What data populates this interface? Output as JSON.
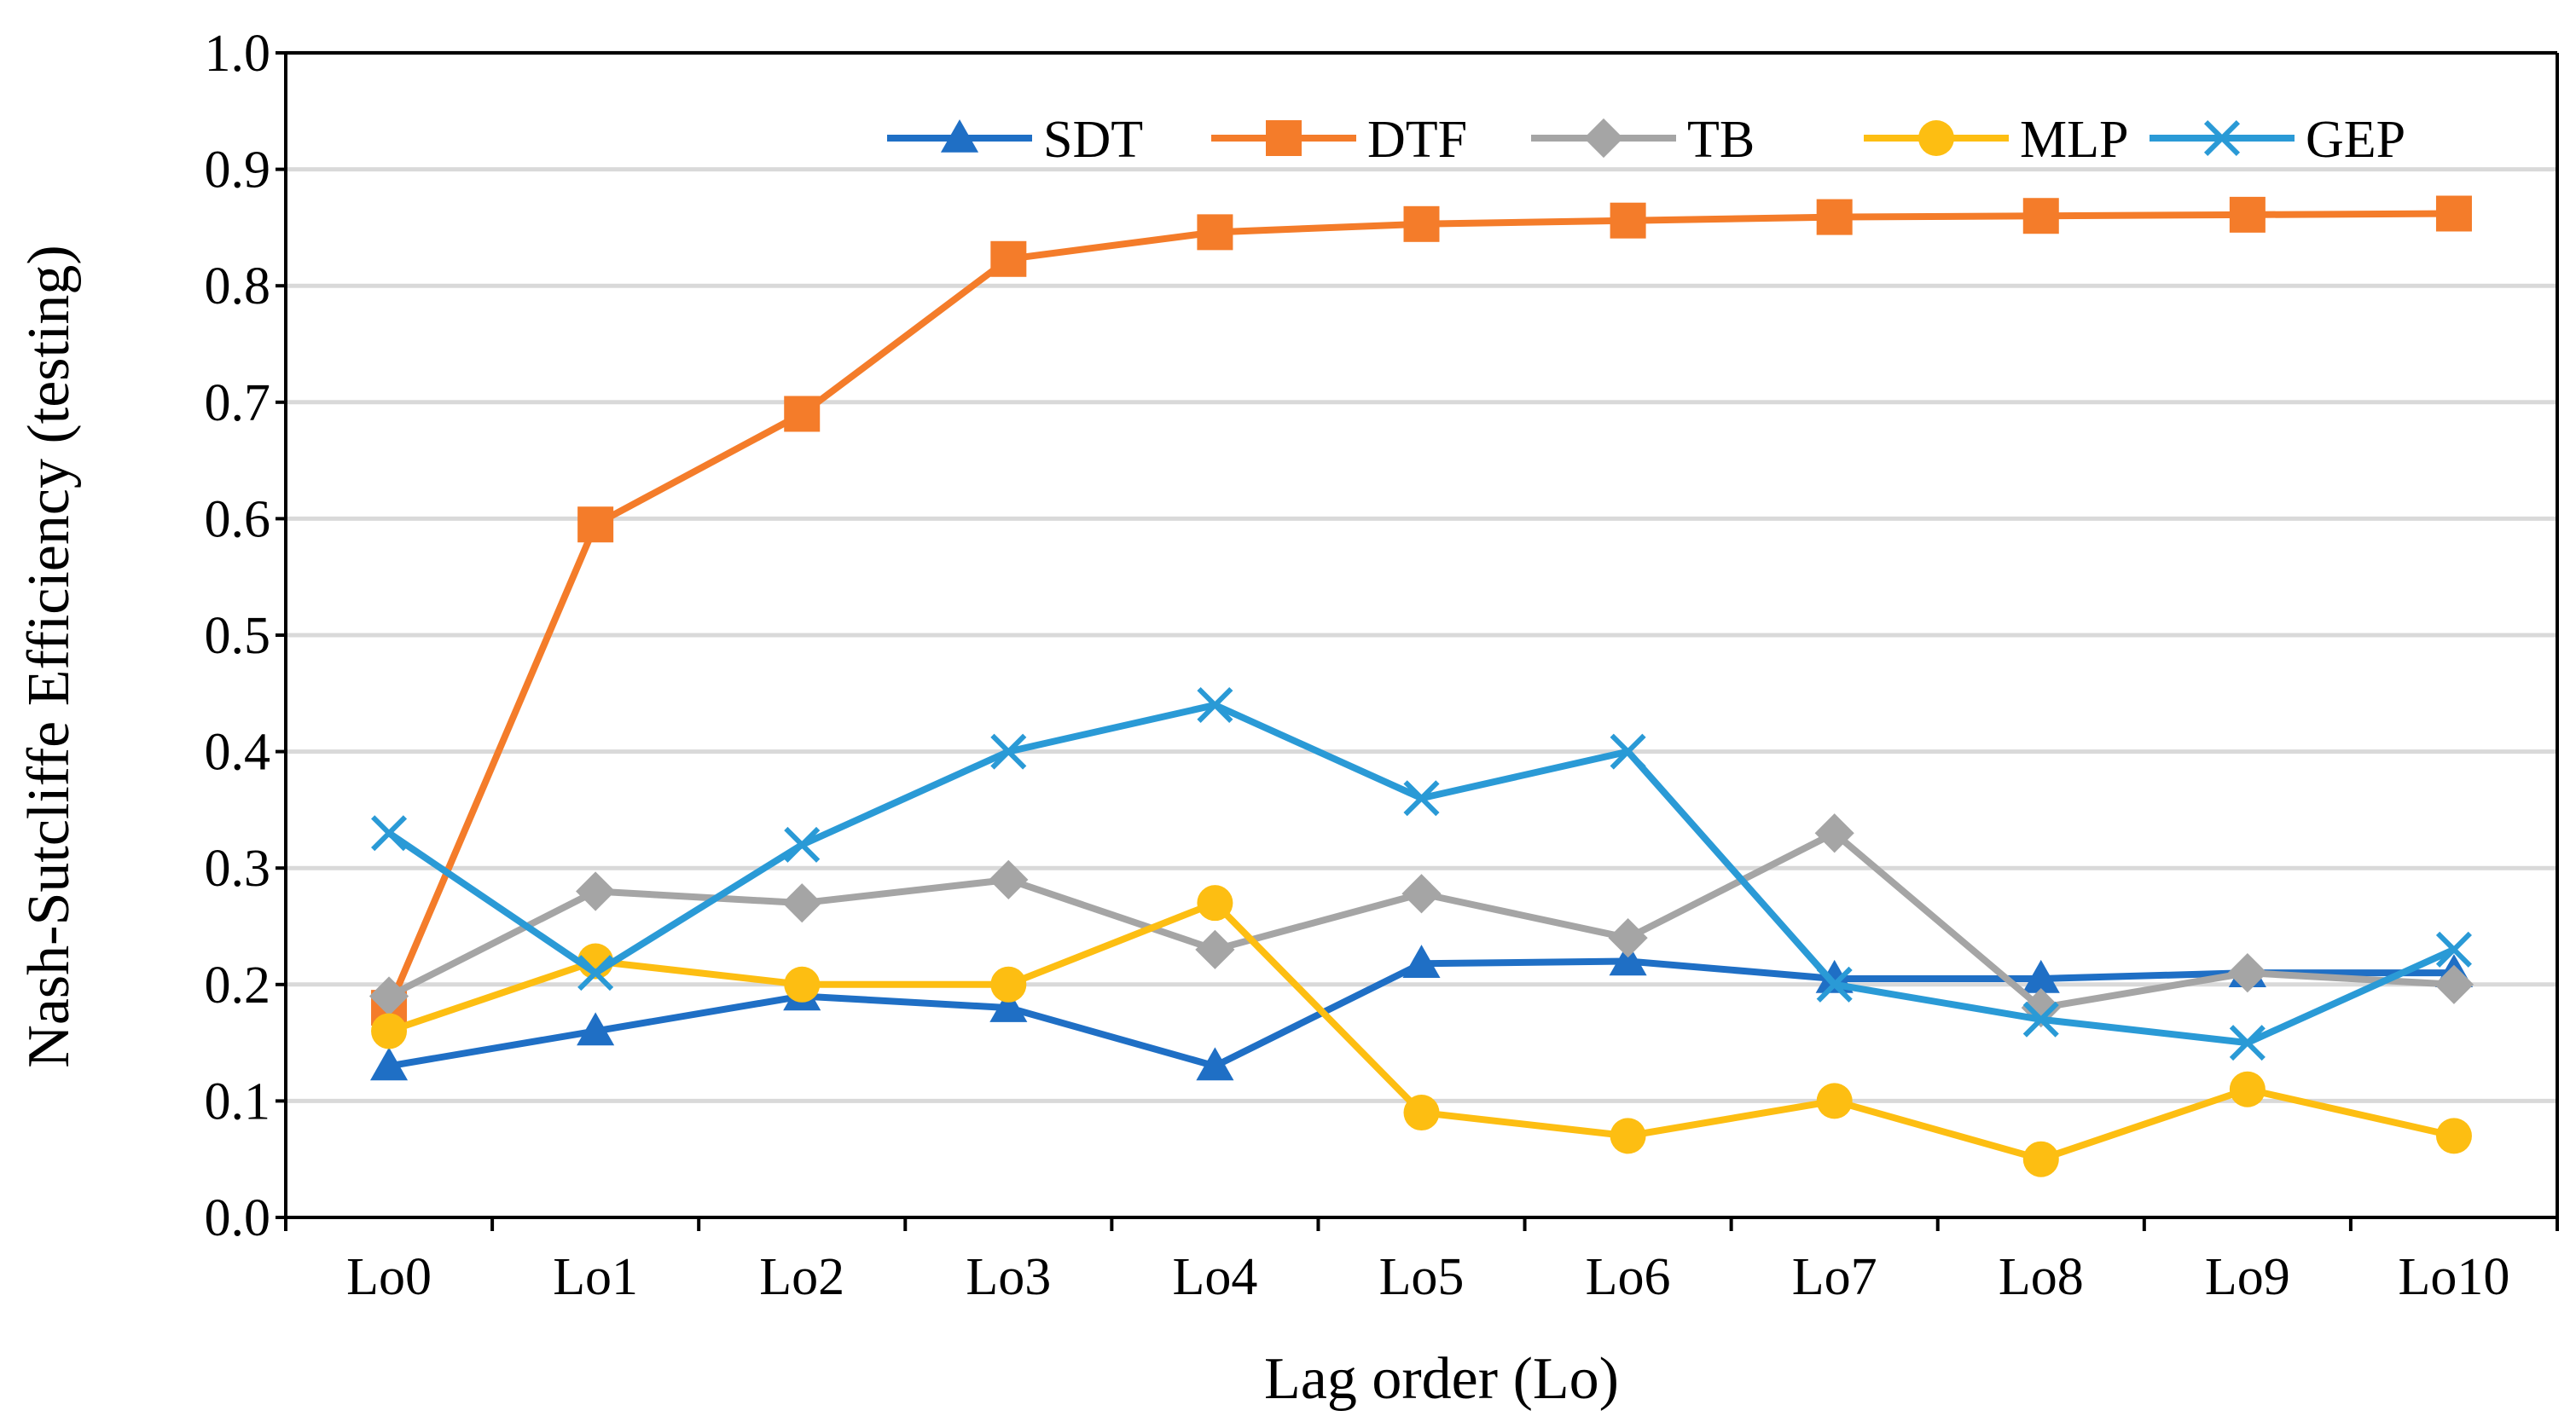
{
  "chart_data": {
    "type": "line",
    "title": "",
    "xlabel": "Lag order (Lo)",
    "ylabel": "Nash-Sutcliffe Efficiency (testing)",
    "categories": [
      "Lo0",
      "Lo1",
      "Lo2",
      "Lo3",
      "Lo4",
      "Lo5",
      "Lo6",
      "Lo7",
      "Lo8",
      "Lo9",
      "Lo10"
    ],
    "ylim": [
      0.0,
      1.0
    ],
    "yticks": [
      "0.0",
      "0.1",
      "0.2",
      "0.3",
      "0.4",
      "0.5",
      "0.6",
      "0.7",
      "0.8",
      "0.9",
      "1.0"
    ],
    "grid": true,
    "legend_position": "top-right",
    "series": [
      {
        "name": "SDT",
        "color": "#1f6fc5",
        "marker": "triangle",
        "values": [
          0.13,
          0.16,
          0.19,
          0.18,
          0.13,
          0.218,
          0.22,
          0.205,
          0.205,
          0.21,
          0.21
        ]
      },
      {
        "name": "DTF",
        "color": "#f47c2a",
        "marker": "square",
        "values": [
          0.18,
          0.595,
          0.69,
          0.823,
          0.846,
          0.853,
          0.856,
          0.859,
          0.86,
          0.861,
          0.862
        ]
      },
      {
        "name": "TB",
        "color": "#a5a5a5",
        "marker": "diamond",
        "values": [
          0.19,
          0.28,
          0.27,
          0.29,
          0.23,
          0.278,
          0.24,
          0.33,
          0.18,
          0.21,
          0.2
        ]
      },
      {
        "name": "MLP",
        "color": "#fdbe12",
        "marker": "circle",
        "values": [
          0.16,
          0.22,
          0.2,
          0.2,
          0.27,
          0.09,
          0.07,
          0.1,
          0.05,
          0.11,
          0.07
        ]
      },
      {
        "name": "GEP",
        "color": "#2a9ad6",
        "marker": "x",
        "values": [
          0.33,
          0.21,
          0.32,
          0.4,
          0.44,
          0.36,
          0.4,
          0.2,
          0.17,
          0.15,
          0.23
        ]
      }
    ]
  }
}
